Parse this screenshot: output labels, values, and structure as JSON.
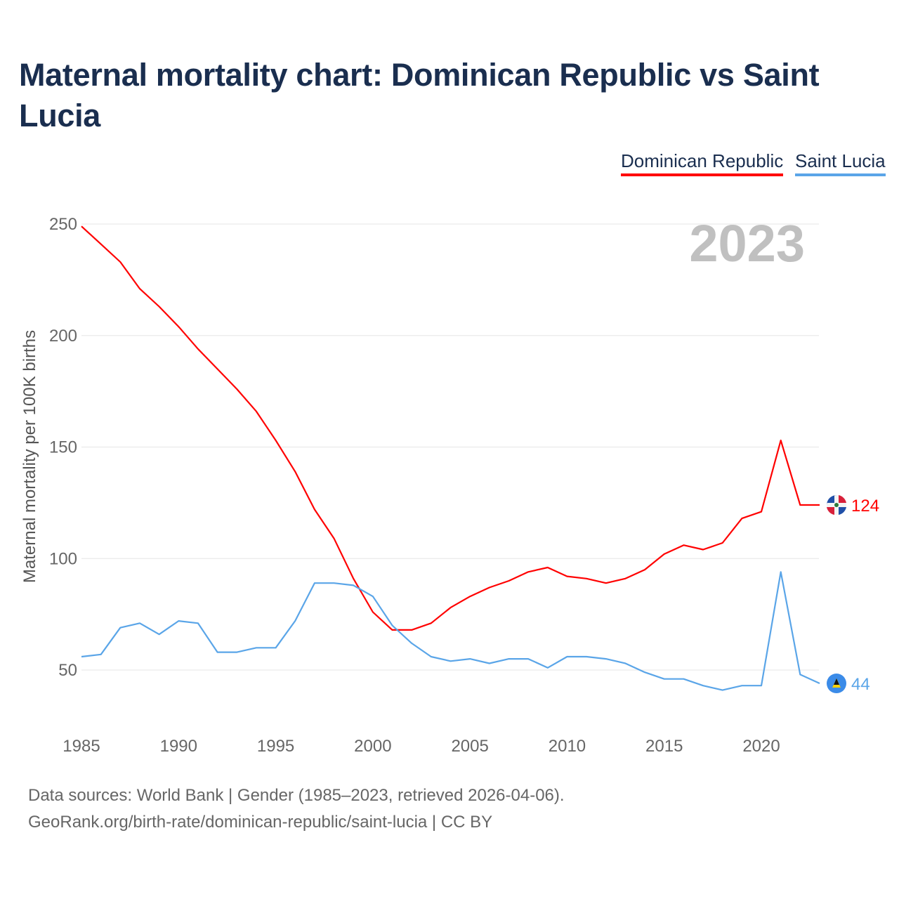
{
  "chart_data": {
    "type": "line",
    "title": "Maternal mortality chart: Dominican Republic vs Saint Lucia",
    "ylabel": "Maternal mortality per 100K births",
    "xlabel": "",
    "year_watermark": "2023",
    "xlim": [
      1985,
      2023
    ],
    "ylim": [
      50,
      250
    ],
    "yticks": [
      50,
      100,
      150,
      200,
      250
    ],
    "xticks": [
      1985,
      1990,
      1995,
      2000,
      2005,
      2010,
      2015,
      2020
    ],
    "grid": true,
    "legend_placement": "top-right",
    "x": [
      1985,
      1986,
      1987,
      1988,
      1989,
      1990,
      1991,
      1992,
      1993,
      1994,
      1995,
      1996,
      1997,
      1998,
      1999,
      2000,
      2001,
      2002,
      2003,
      2004,
      2005,
      2006,
      2007,
      2008,
      2009,
      2010,
      2011,
      2012,
      2013,
      2014,
      2015,
      2016,
      2017,
      2018,
      2019,
      2020,
      2021,
      2022,
      2023
    ],
    "series": [
      {
        "name": "Dominican Republic",
        "color": "#ff0000",
        "end_label": "124",
        "values": [
          249,
          241,
          233,
          221,
          213,
          204,
          194,
          185,
          176,
          166,
          153,
          139,
          122,
          109,
          91,
          76,
          68,
          68,
          71,
          78,
          83,
          87,
          90,
          94,
          96,
          92,
          91,
          89,
          91,
          95,
          102,
          106,
          104,
          107,
          118,
          121,
          153,
          124,
          124
        ]
      },
      {
        "name": "Saint Lucia",
        "color": "#5aa5e8",
        "end_label": "44",
        "values": [
          56,
          57,
          69,
          71,
          66,
          72,
          71,
          58,
          58,
          60,
          60,
          72,
          89,
          89,
          88,
          83,
          70,
          62,
          56,
          54,
          55,
          53,
          55,
          55,
          51,
          56,
          56,
          55,
          53,
          49,
          46,
          46,
          43,
          41,
          43,
          43,
          94,
          48,
          44
        ]
      }
    ]
  },
  "footer": {
    "line1": "Data sources: World Bank | Gender (1985–2023, retrieved 2026-04-06).",
    "line2": "GeoRank.org/birth-rate/dominican-republic/saint-lucia | CC BY"
  }
}
